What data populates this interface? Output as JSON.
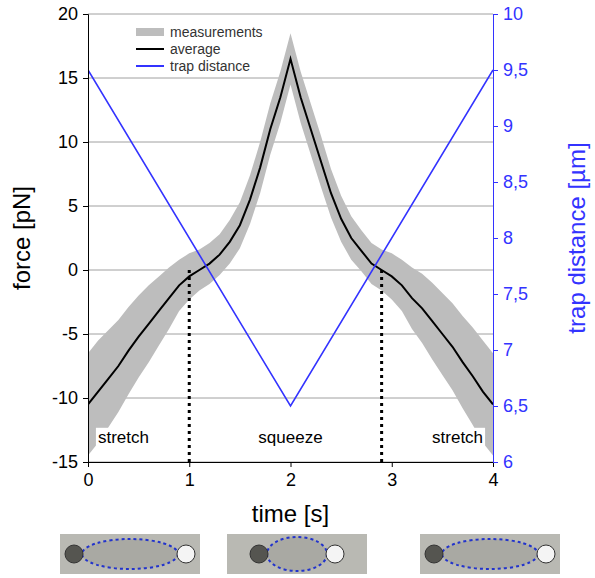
{
  "chart_data": {
    "type": "line",
    "x_label": "time [s]",
    "y_label": "force [pN]",
    "y2_label": "trap distance [µm]",
    "x": [
      0,
      0.1,
      0.2,
      0.3,
      0.4,
      0.5,
      0.6,
      0.7,
      0.8,
      0.9,
      1,
      1.1,
      1.2,
      1.3,
      1.4,
      1.5,
      1.6,
      1.7,
      1.8,
      1.9,
      2,
      2.1,
      2.2,
      2.3,
      2.4,
      2.5,
      2.6,
      2.7,
      2.8,
      2.9,
      3,
      3.1,
      3.2,
      3.3,
      3.4,
      3.5,
      3.6,
      3.7,
      3.8,
      3.9,
      4
    ],
    "series": [
      {
        "name": "measurements",
        "type": "band",
        "color": "#bdbdbd",
        "upper": [
          -6.5,
          -5.5,
          -4.7,
          -3.9,
          -2.9,
          -2,
          -1.2,
          -0.5,
          0.2,
          0.8,
          1.3,
          1.6,
          2.1,
          2.8,
          3.9,
          5.3,
          7.4,
          10,
          13,
          15.5,
          18.5,
          15.5,
          13,
          10.5,
          7.9,
          5.8,
          4.2,
          3.1,
          2.1,
          1.6,
          1.3,
          0.8,
          0.2,
          -0.3,
          -1,
          -1.8,
          -2.6,
          -3.6,
          -4.5,
          -5.5,
          -6.5
        ],
        "lower": [
          -14.5,
          -13.5,
          -12.3,
          -11.1,
          -9.7,
          -8.4,
          -7.2,
          -5.9,
          -4.6,
          -3.2,
          -2.3,
          -1.6,
          -1.1,
          -0.4,
          0.5,
          1.7,
          3.6,
          6,
          9,
          11.5,
          14.5,
          11.5,
          9,
          6.5,
          4.1,
          2.2,
          0.8,
          -0.1,
          -1.1,
          -1.6,
          -2.3,
          -3.2,
          -4.6,
          -5.7,
          -7,
          -8.2,
          -9.4,
          -10.8,
          -12.1,
          -13.5,
          -14.5
        ]
      },
      {
        "name": "average",
        "type": "line",
        "color": "#000000",
        "values": [
          -10.5,
          -9.5,
          -8.5,
          -7.5,
          -6.3,
          -5.2,
          -4.2,
          -3.2,
          -2.2,
          -1.2,
          -0.5,
          0,
          0.5,
          1.2,
          2.2,
          3.5,
          5.5,
          8,
          11,
          13.5,
          16.5,
          13.5,
          11,
          8.5,
          6,
          4,
          2.5,
          1.5,
          0.5,
          0,
          -0.5,
          -1.2,
          -2.2,
          -3,
          -4,
          -5,
          -6,
          -7.2,
          -8.3,
          -9.5,
          -10.5
        ]
      },
      {
        "name": "trap distance",
        "type": "line",
        "color": "#3333ff",
        "axis": "y2",
        "x": [
          0,
          2,
          4
        ],
        "values": [
          9.5,
          6.5,
          9.5
        ]
      }
    ],
    "xlim": [
      0,
      4
    ],
    "xticks": [
      0,
      1,
      2,
      3,
      4
    ],
    "ylim": [
      -15,
      20
    ],
    "yticks": [
      -15,
      -10,
      -5,
      0,
      5,
      10,
      15,
      20
    ],
    "y2lim": [
      6,
      10
    ],
    "y2ticks": [
      6,
      {
        "value": 6.5,
        "label": "6,5"
      },
      7,
      {
        "value": 7.5,
        "label": "7,5"
      },
      8,
      {
        "value": 8.5,
        "label": "8,5"
      },
      9,
      {
        "value": 9.5,
        "label": "9,5"
      },
      10
    ],
    "vlines": [
      {
        "x": 1,
        "y": 0
      },
      {
        "x": 2.9,
        "y": 0
      }
    ],
    "annotations": [
      {
        "text": "stretch",
        "x": 0.35,
        "y": -13.5
      },
      {
        "text": "squeeze",
        "x": 2,
        "y": -13.5
      },
      {
        "text": "stretch",
        "x": 3.65,
        "y": -13.5
      }
    ],
    "grid": true,
    "legend": "upper left"
  }
}
